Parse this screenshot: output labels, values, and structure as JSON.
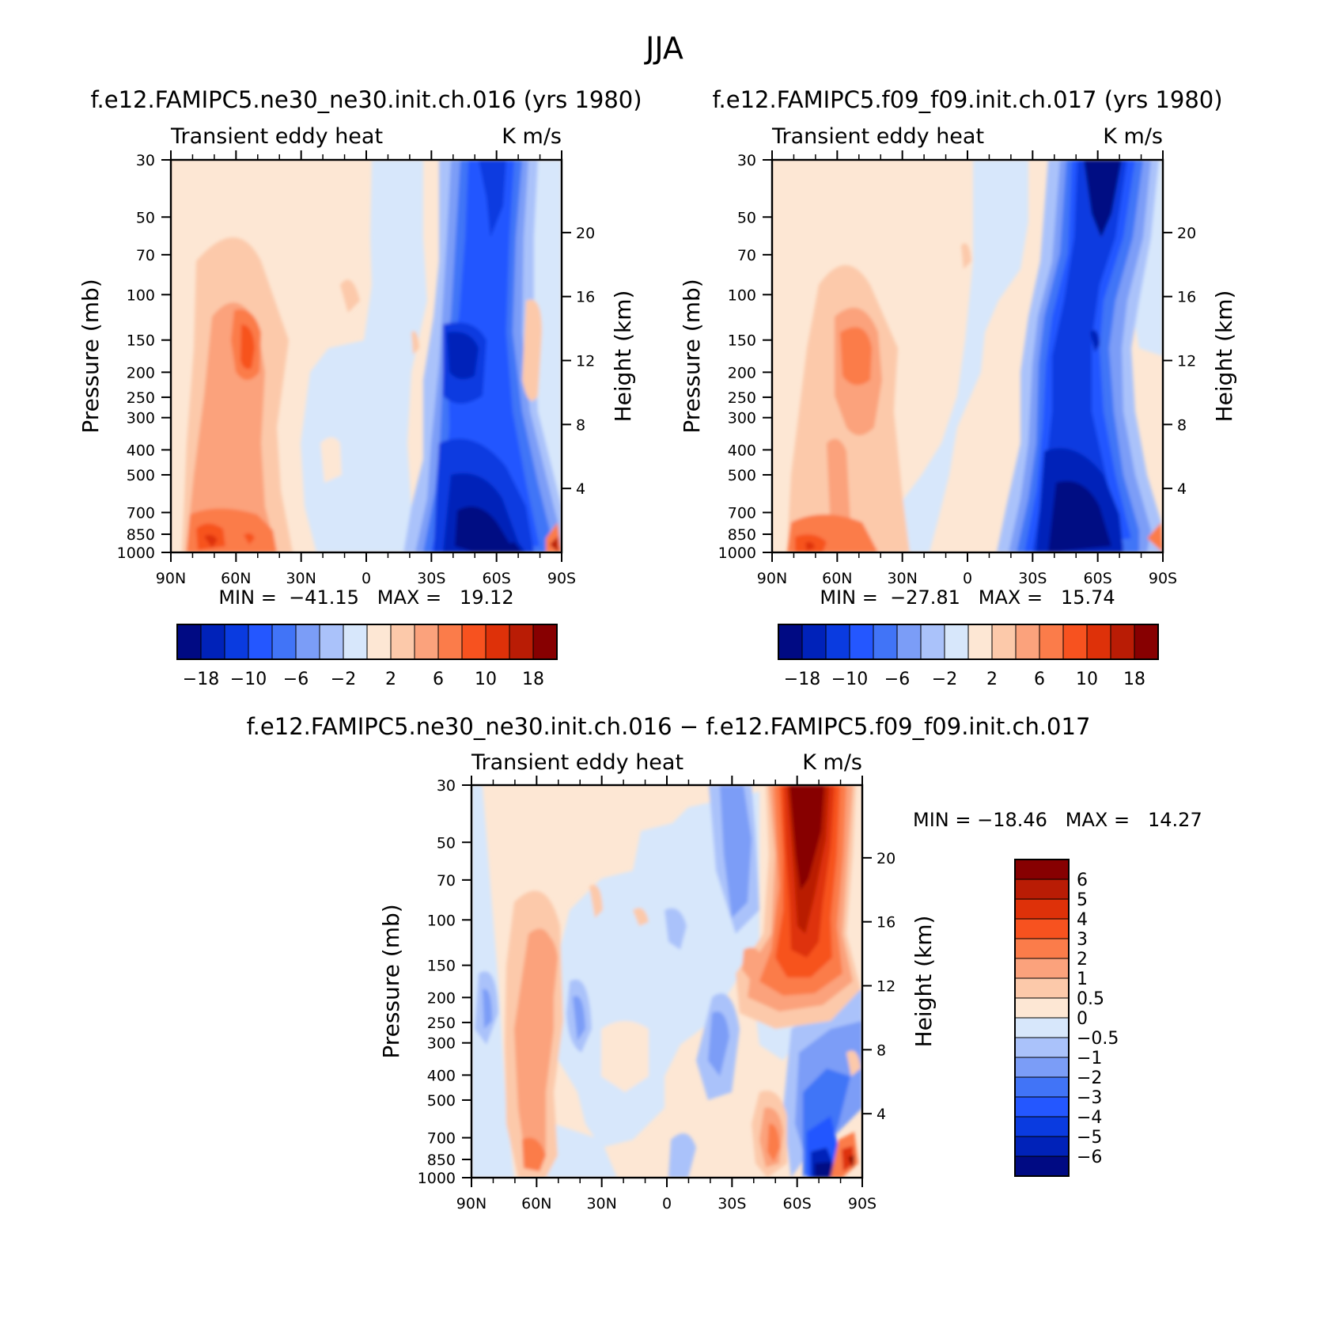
{
  "figure": {
    "title": "JJA"
  },
  "panels": {
    "a": {
      "title": "f.e12.FAMIPC5.ne30_ne30.init.ch.016 (yrs 1980)",
      "variable": "Transient eddy heat",
      "units": "K m/s",
      "stats": "MIN =  −41.15   MAX =   19.12"
    },
    "b": {
      "title": "f.e12.FAMIPC5.f09_f09.init.ch.017 (yrs 1980)",
      "variable": "Transient eddy heat",
      "units": "K m/s",
      "stats": "MIN =  −27.81   MAX =   15.74"
    },
    "c": {
      "title": "f.e12.FAMIPC5.ne30_ne30.init.ch.016 − f.e12.FAMIPC5.f09_f09.init.ch.017",
      "variable": "Transient eddy heat",
      "units": "K m/s",
      "stats": "MIN = −18.46   MAX =   14.27"
    }
  },
  "axes": {
    "ylabel": "Pressure (mb)",
    "y2label": "Height (km)"
  },
  "chart_data": [
    {
      "type": "heatmap",
      "subtype": "filled-contour",
      "title": "f.e12.FAMIPC5.ne30_ne30.init.ch.016 (yrs 1980)",
      "variable": "Transient eddy heat",
      "units": "K m/s",
      "x_ticks": [
        "90N",
        "60N",
        "30N",
        "0",
        "30S",
        "60S",
        "90S"
      ],
      "x_lat": [
        90,
        60,
        30,
        0,
        -30,
        -60,
        -90
      ],
      "y_ticks": [
        30,
        50,
        70,
        100,
        150,
        200,
        250,
        300,
        400,
        500,
        700,
        850,
        1000
      ],
      "y2_ticks": [
        20,
        16,
        12,
        8,
        4
      ],
      "ylim": [
        1000,
        30
      ],
      "min": -41.15,
      "max": 19.12,
      "colorbar_labels": [
        "−18",
        "−10",
        "−6",
        "−2",
        "2",
        "6",
        "10",
        "18"
      ],
      "features": [
        {
          "name": "negative core",
          "lat": -52,
          "p": 870,
          "value": -36
        },
        {
          "name": "negative core",
          "lat": -50,
          "p": 175,
          "value": -14
        },
        {
          "name": "negative stratospheric",
          "lat": -58,
          "p": 35,
          "value": -14
        },
        {
          "name": "positive core",
          "lat": 65,
          "p": 930,
          "value": 14
        },
        {
          "name": "positive core",
          "lat": 55,
          "p": 170,
          "value": 8
        },
        {
          "name": "positive near pole",
          "lat": -82,
          "p": 950,
          "value": 12
        }
      ]
    },
    {
      "type": "heatmap",
      "subtype": "filled-contour",
      "title": "f.e12.FAMIPC5.f09_f09.init.ch.017 (yrs 1980)",
      "variable": "Transient eddy heat",
      "units": "K m/s",
      "x_ticks": [
        "90N",
        "60N",
        "30N",
        "0",
        "30S",
        "60S",
        "90S"
      ],
      "x_lat": [
        90,
        60,
        30,
        0,
        -30,
        -60,
        -90
      ],
      "y_ticks": [
        30,
        50,
        70,
        100,
        150,
        200,
        250,
        300,
        400,
        500,
        700,
        850,
        1000
      ],
      "y2_ticks": [
        20,
        16,
        12,
        8,
        4
      ],
      "ylim": [
        1000,
        30
      ],
      "min": -27.81,
      "max": 15.74,
      "colorbar_labels": [
        "−18",
        "−10",
        "−6",
        "−2",
        "2",
        "6",
        "10",
        "18"
      ],
      "features": [
        {
          "name": "negative core",
          "lat": -52,
          "p": 860,
          "value": -25
        },
        {
          "name": "negative core",
          "lat": -50,
          "p": 190,
          "value": -15
        },
        {
          "name": "negative stratospheric",
          "lat": -60,
          "p": 40,
          "value": -22
        },
        {
          "name": "positive core",
          "lat": 65,
          "p": 930,
          "value": 11
        },
        {
          "name": "positive core",
          "lat": 55,
          "p": 170,
          "value": 7
        }
      ]
    },
    {
      "type": "heatmap",
      "subtype": "filled-contour",
      "title": "f.e12.FAMIPC5.ne30_ne30.init.ch.016 − f.e12.FAMIPC5.f09_f09.init.ch.017",
      "variable": "Transient eddy heat",
      "units": "K m/s",
      "x_ticks": [
        "90N",
        "60N",
        "30N",
        "0",
        "30S",
        "60S",
        "90S"
      ],
      "x_lat": [
        90,
        60,
        30,
        0,
        -30,
        -60,
        -90
      ],
      "y_ticks": [
        30,
        50,
        70,
        100,
        150,
        200,
        250,
        300,
        400,
        500,
        700,
        850,
        1000
      ],
      "y2_ticks": [
        20,
        16,
        12,
        8,
        4
      ],
      "ylim": [
        1000,
        30
      ],
      "min": -18.46,
      "max": 14.27,
      "colorbar_labels": [
        "6",
        "5",
        "4",
        "3",
        "2",
        "1",
        "0.5",
        "0",
        "−0.5",
        "−1",
        "−2",
        "−3",
        "−4",
        "−5",
        "−6"
      ],
      "features": [
        {
          "name": "positive stratospheric core",
          "lat": -62,
          "p": 60,
          "value": 8
        },
        {
          "name": "negative near surface",
          "lat": -72,
          "p": 930,
          "value": -8
        },
        {
          "name": "positive near surface",
          "lat": -55,
          "p": 880,
          "value": 3
        },
        {
          "name": "negative upper",
          "lat": -35,
          "p": 80,
          "value": -2
        }
      ]
    }
  ],
  "colors": {
    "diverging_16": [
      "#000a83",
      "#0022b9",
      "#0a3be0",
      "#2457ff",
      "#4174f7",
      "#7b9df7",
      "#aac2fa",
      "#d7e7fb",
      "#fde7d4",
      "#fcc9aa",
      "#fba27c",
      "#fb7c4a",
      "#f7521f",
      "#de3109",
      "#b91c05",
      "#870001"
    ]
  }
}
